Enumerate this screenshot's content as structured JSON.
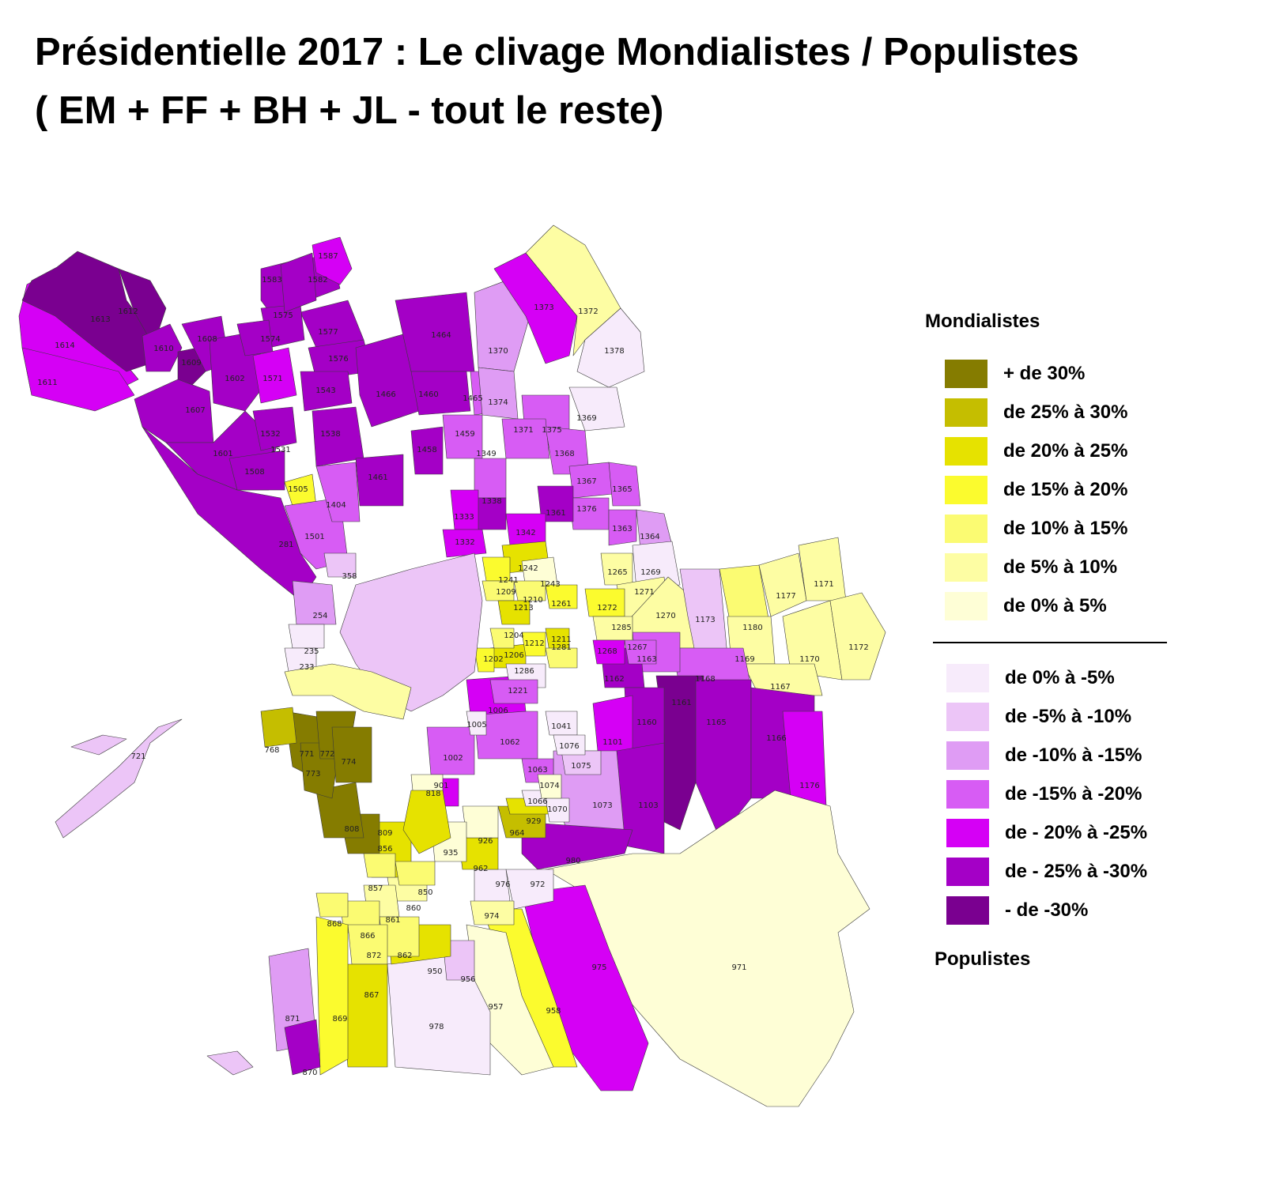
{
  "title": {
    "line1": "Présidentielle 2017 : Le clivage Mondialistes / Populistes",
    "line2": "( EM + FF + BH + JL - tout le reste)"
  },
  "legend": {
    "top_heading": "Mondialistes",
    "bottom_heading": "Populistes",
    "positive": [
      {
        "label": "+ de 30%",
        "color": "#857c00"
      },
      {
        "label": "de 25% à 30%",
        "color": "#c5be00"
      },
      {
        "label": "de 20% à 25%",
        "color": "#e6e200"
      },
      {
        "label": "de 15% à 20%",
        "color": "#fbfb2e"
      },
      {
        "label": "de 10% à 15%",
        "color": "#fbfb72"
      },
      {
        "label": "de 5% à 10%",
        "color": "#fdfda3"
      },
      {
        "label": "de 0% à 5%",
        "color": "#fefed6"
      }
    ],
    "negative": [
      {
        "label": "de 0% à -5%",
        "color": "#f7ebfb"
      },
      {
        "label": "de -5% à -10%",
        "color": "#ecc5f7"
      },
      {
        "label": "de -10% à -15%",
        "color": "#df9cf4"
      },
      {
        "label": "de -15% à -20%",
        "color": "#d75cf4"
      },
      {
        "label": "de - 20% à -25%",
        "color": "#d500f5"
      },
      {
        "label": "de - 25% à -30%",
        "color": "#a400c6"
      },
      {
        "label": "- de -30%",
        "color": "#7a0090"
      }
    ]
  },
  "map_labels": {
    "1614": "1614",
    "1611": "1611",
    "1613": "1613",
    "1612": "1612",
    "1610": "1610",
    "1609": "1609",
    "1608": "1608",
    "1607": "1607",
    "1602": "1602",
    "1601": "1601",
    "1583": "1583",
    "1582": "1582",
    "1587": "1587",
    "1577": "1577",
    "1576": "1576",
    "1575": "1575",
    "1574": "1574",
    "1571": "1571",
    "1543": "1543",
    "1538": "1538",
    "1532": "1532",
    "1531": "1531",
    "1508": "1508",
    "1505": "1505",
    "1501": "1501",
    "1466": "1466",
    "1464": "1464",
    "1460": "1460",
    "1465": "1465",
    "1459": "1459",
    "1458": "1458",
    "1461": "1461",
    "1404": "1404",
    "1373": "1373",
    "1372": "1372",
    "1370": "1370",
    "1374": "1374",
    "1378": "1378",
    "1369": "1369",
    "1375": "1375",
    "1371": "1371",
    "1368": "1368",
    "1349": "1349",
    "1367": "1367",
    "1365": "1365",
    "1376": "1376",
    "1361": "1361",
    "1363": "1363",
    "1364": "1364",
    "1338": "1338",
    "1333": "1333",
    "1342": "1342",
    "1332": "1332",
    "1265": "1265",
    "1269": "1269",
    "1271": "1271",
    "1270": "1270",
    "1173": "1173",
    "1177": "1177",
    "1171": "1171",
    "1180": "1180",
    "1172": "1172",
    "1169": "1169",
    "1170": "1170",
    "1167": "1167",
    "1168": "1168",
    "1163": "1163",
    "1162": "1162",
    "1161": "1161",
    "1160": "1160",
    "1165": "1165",
    "1166": "1166",
    "1176": "1176",
    "1101": "1101",
    "1103": "1103",
    "1073": "1073",
    "1062": "1062",
    "1002": "1002",
    "1006": "1006",
    "980": "980",
    "975": "975",
    "971": "971",
    "972": "972",
    "976": "976",
    "974": "974",
    "958": "958",
    "957": "957",
    "956": "956",
    "978": "978",
    "950": "950",
    "962": "962",
    "964": "964",
    "929": "929",
    "926": "926",
    "935": "935",
    "901": "901",
    "818": "818",
    "856": "856",
    "809": "809",
    "808": "808",
    "860": "860",
    "861": "861",
    "862": "862",
    "866": "866",
    "868": "868",
    "872": "872",
    "867": "867",
    "869": "869",
    "871": "871",
    "870": "870",
    "850": "850",
    "857": "857",
    "771": "771",
    "772": "772",
    "773": "773",
    "774": "774",
    "768": "768",
    "721": "721",
    "281": "281",
    "254": "254",
    "235": "235",
    "233": "233",
    "358": "358",
    "1242": "1242",
    "1243": "1243",
    "1241": "1241",
    "1209": "1209",
    "1210": "1210",
    "1213": "1213",
    "1261": "1261",
    "1272": "1272",
    "1285": "1285",
    "1206": "1206",
    "1211": "1211",
    "1212": "1212",
    "1281": "1281",
    "1286": "1286",
    "1221": "1221",
    "1267": "1267",
    "1268": "1268",
    "1202": "1202",
    "1204": "1204",
    "1005": "1005",
    "1063": "1063",
    "1066": "1066",
    "1070": "1070",
    "1041": "1041",
    "1075": "1075",
    "1074": "1074",
    "1076": "1076"
  }
}
